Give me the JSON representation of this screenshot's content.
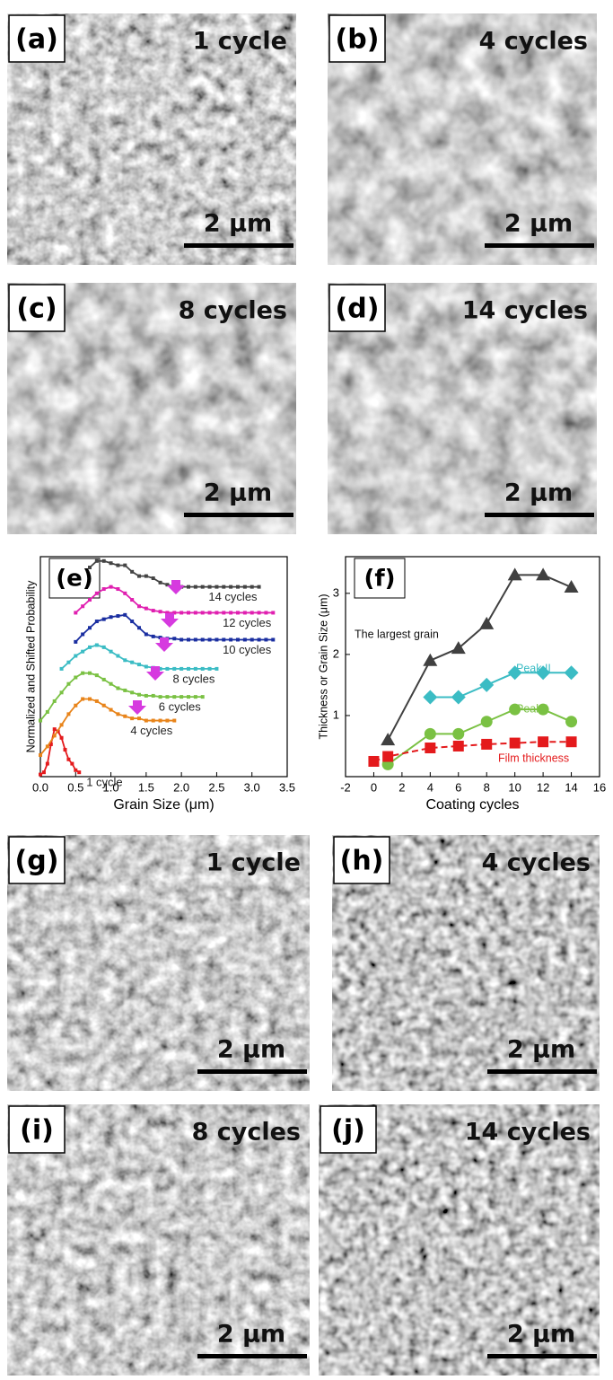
{
  "panels": [
    {
      "label": "(a)",
      "caption": "1 cycle",
      "scale": "2 μm"
    },
    {
      "label": "(b)",
      "caption": "4 cycles",
      "scale": "2 μm"
    },
    {
      "label": "(c)",
      "caption": "8 cycles",
      "scale": "2 μm"
    },
    {
      "label": "(d)",
      "caption": "14 cycles",
      "scale": "2 μm"
    },
    {
      "label": "(g)",
      "caption": "1 cycle",
      "scale": "2 μm"
    },
    {
      "label": "(h)",
      "caption": "4 cycles",
      "scale": "2 μm"
    },
    {
      "label": "(i)",
      "caption": "8 cycles",
      "scale": "2 μm"
    },
    {
      "label": "(j)",
      "caption": "14 cycles",
      "scale": "2 μm"
    }
  ],
  "chart_data": [
    {
      "type": "line",
      "panel_label": "(e)",
      "xlabel": "Grain Size (μm)",
      "ylabel": "Normalized and Shifted Probability",
      "xlim": [
        0,
        3.5
      ],
      "ylim": [
        0,
        10.2
      ],
      "xticks": [
        {
          "value": 0,
          "label": "0.0"
        },
        0.5,
        {
          "value": 1,
          "label": "1.0"
        },
        1.5,
        {
          "value": 2,
          "label": "2.0"
        },
        2.5,
        {
          "value": 3,
          "label": "3.0"
        },
        3.5
      ],
      "series": [
        {
          "name": "1 cycle",
          "color": "#e41a1c",
          "x": [
            0,
            0.05,
            0.1,
            0.15,
            0.2,
            0.25,
            0.3,
            0.35,
            0.4,
            0.45,
            0.5,
            0.55
          ],
          "values": [
            0.1,
            0.2,
            0.6,
            1.5,
            2.2,
            2.1,
            1.8,
            1.25,
            0.8,
            0.6,
            0.3,
            0.2
          ]
        },
        {
          "name": "4 cycles",
          "color": "#e8841a",
          "x": [
            0,
            0.1,
            0.2,
            0.3,
            0.4,
            0.5,
            0.6,
            0.7,
            0.8,
            0.9,
            1.0,
            1.1,
            1.2,
            1.3,
            1.4,
            1.5,
            1.6,
            1.7,
            1.8,
            1.9
          ],
          "values": [
            1.0,
            1.4,
            1.9,
            2.4,
            2.9,
            3.3,
            3.6,
            3.6,
            3.5,
            3.3,
            3.1,
            2.9,
            2.8,
            2.7,
            2.7,
            2.6,
            2.6,
            2.6,
            2.6,
            2.6
          ]
        },
        {
          "name": "6 cycles",
          "color": "#7ac143",
          "x": [
            0,
            0.1,
            0.2,
            0.3,
            0.4,
            0.5,
            0.6,
            0.7,
            0.8,
            0.9,
            1.0,
            1.1,
            1.2,
            1.3,
            1.4,
            1.5,
            1.6,
            1.7,
            1.8,
            1.9,
            2.0,
            2.1,
            2.2,
            2.3
          ],
          "values": [
            2.6,
            3.0,
            3.5,
            3.9,
            4.3,
            4.6,
            4.8,
            4.8,
            4.7,
            4.5,
            4.3,
            4.1,
            4.0,
            3.9,
            3.8,
            3.75,
            3.75,
            3.7,
            3.7,
            3.7,
            3.7,
            3.7,
            3.7,
            3.7
          ]
        },
        {
          "name": "8 cycles",
          "color": "#3bbcc4",
          "x": [
            0.3,
            0.4,
            0.5,
            0.6,
            0.7,
            0.8,
            0.9,
            1.0,
            1.1,
            1.2,
            1.3,
            1.4,
            1.5,
            1.6,
            1.7,
            1.8,
            1.9,
            2.0,
            2.1,
            2.2,
            2.3,
            2.4,
            2.5
          ],
          "values": [
            5.0,
            5.3,
            5.6,
            5.8,
            6.0,
            6.1,
            6.0,
            5.8,
            5.6,
            5.4,
            5.3,
            5.2,
            5.1,
            5.05,
            5.0,
            5.0,
            5.0,
            5.0,
            5.0,
            5.0,
            5.0,
            5.0,
            5.0
          ]
        },
        {
          "name": "10 cycles",
          "color": "#1a2ea0",
          "x": [
            0.5,
            0.6,
            0.7,
            0.8,
            0.9,
            1.0,
            1.1,
            1.2,
            1.3,
            1.4,
            1.5,
            1.6,
            1.7,
            1.8,
            1.9,
            2.0,
            2.1,
            2.2,
            2.3,
            2.4,
            2.5,
            2.6,
            2.7,
            2.8,
            2.9,
            3.0,
            3.1,
            3.2,
            3.3
          ],
          "values": [
            6.25,
            6.6,
            6.9,
            7.2,
            7.3,
            7.4,
            7.45,
            7.5,
            7.2,
            6.9,
            6.6,
            6.5,
            6.45,
            6.4,
            6.4,
            6.35,
            6.35,
            6.35,
            6.35,
            6.35,
            6.35,
            6.35,
            6.35,
            6.35,
            6.35,
            6.35,
            6.35,
            6.35,
            6.35
          ]
        },
        {
          "name": "12 cycles",
          "color": "#e020b0",
          "x": [
            0.5,
            0.6,
            0.7,
            0.8,
            0.9,
            1.0,
            1.1,
            1.2,
            1.3,
            1.4,
            1.5,
            1.6,
            1.7,
            1.8,
            1.9,
            2.0,
            2.1,
            2.2,
            2.3,
            2.4,
            2.5,
            2.6,
            2.7,
            2.8,
            2.9,
            3.0,
            3.1,
            3.2,
            3.3
          ],
          "values": [
            7.6,
            7.9,
            8.2,
            8.5,
            8.7,
            8.8,
            8.7,
            8.5,
            8.2,
            7.9,
            7.8,
            7.7,
            7.65,
            7.6,
            7.6,
            7.6,
            7.6,
            7.6,
            7.6,
            7.6,
            7.6,
            7.6,
            7.6,
            7.6,
            7.6,
            7.6,
            7.6,
            7.6,
            7.6
          ]
        },
        {
          "name": "14 cycles",
          "color": "#444444",
          "x": [
            0.7,
            0.8,
            0.9,
            1.0,
            1.1,
            1.2,
            1.3,
            1.4,
            1.5,
            1.6,
            1.7,
            1.8,
            1.9,
            2.0,
            2.1,
            2.2,
            2.3,
            2.4,
            2.5,
            2.6,
            2.7,
            2.8,
            2.9,
            3.0,
            3.1
          ],
          "values": [
            9.7,
            10.0,
            10.0,
            9.9,
            9.8,
            9.8,
            9.5,
            9.3,
            9.3,
            9.2,
            9.0,
            8.9,
            8.8,
            8.8,
            8.8,
            8.8,
            8.8,
            8.8,
            8.8,
            8.8,
            8.8,
            8.8,
            8.8,
            8.8,
            8.8
          ]
        }
      ]
    },
    {
      "type": "line",
      "panel_label": "(f)",
      "xlabel": "Coating cycles",
      "ylabel": "Thickness or Grain Size (μm)",
      "xlim": [
        -2,
        16
      ],
      "ylim": [
        0,
        3.6
      ],
      "xticks": [
        -2,
        0,
        2,
        4,
        6,
        8,
        10,
        12,
        14,
        16
      ],
      "yticks": [
        1,
        2,
        3
      ],
      "series": [
        {
          "name": "The largest grain",
          "color": "#404040",
          "marker": "triangle",
          "x": [
            1,
            4,
            6,
            8,
            10,
            12,
            14
          ],
          "values": [
            0.6,
            1.9,
            2.1,
            2.5,
            3.3,
            3.3,
            3.1
          ]
        },
        {
          "name": "Peak II",
          "color": "#3bbcc4",
          "marker": "diamond",
          "x": [
            4,
            6,
            8,
            10,
            12,
            14
          ],
          "values": [
            1.3,
            1.3,
            1.5,
            1.7,
            1.7,
            1.7
          ]
        },
        {
          "name": "Peak I",
          "color": "#7ac143",
          "marker": "circle",
          "x": [
            1,
            4,
            6,
            8,
            10,
            12,
            14
          ],
          "values": [
            0.2,
            0.7,
            0.7,
            0.9,
            1.1,
            1.1,
            0.9
          ]
        },
        {
          "name": "Film thickness",
          "color": "#e41a1c",
          "marker": "square",
          "x": [
            0,
            1,
            4,
            6,
            8,
            10,
            12,
            14
          ],
          "values": [
            0.25,
            0.33,
            0.47,
            0.5,
            0.53,
            0.55,
            0.57,
            0.57
          ]
        }
      ]
    }
  ]
}
